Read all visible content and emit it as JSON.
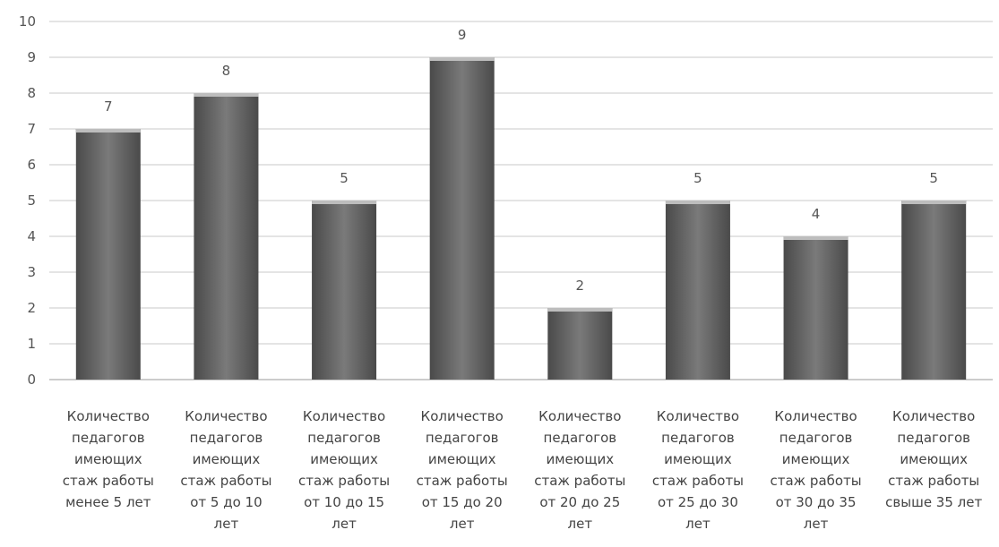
{
  "chart_data": {
    "type": "bar",
    "categories": [
      [
        "Количество",
        "педагогов",
        "имеющих",
        "стаж работы",
        "менее 5 лет"
      ],
      [
        "Количество",
        "педагогов",
        "имеющих",
        "стаж работы",
        "от 5 до 10",
        "лет"
      ],
      [
        "Количество",
        "педагогов",
        "имеющих",
        "стаж работы",
        "от 10 до 15",
        "лет"
      ],
      [
        "Количество",
        "педагогов",
        "имеющих",
        "стаж работы",
        "от 15 до 20",
        "лет"
      ],
      [
        "Количество",
        "педагогов",
        "имеющих",
        "стаж работы",
        "от 20 до 25",
        "лет"
      ],
      [
        "Количество",
        "педагогов",
        "имеющих",
        "стаж работы",
        "от 25 до 30",
        "лет"
      ],
      [
        "Количество",
        "педагогов",
        "имеющих",
        "стаж работы",
        "от 30 до 35",
        "лет"
      ],
      [
        "Количество",
        "педагогов",
        "имеющих",
        "стаж работы",
        "свыше 35 лет"
      ]
    ],
    "values": [
      7,
      8,
      5,
      9,
      2,
      5,
      4,
      5
    ],
    "data_labels": [
      "7",
      "8",
      "5",
      "9",
      "2",
      "5",
      "4",
      "5"
    ],
    "y_ticks": [
      "0",
      "1",
      "2",
      "3",
      "4",
      "5",
      "6",
      "7",
      "8",
      "9",
      "10"
    ],
    "ylim": [
      0,
      10
    ],
    "grid": true,
    "legend": "none",
    "colors": {
      "bar_dark": "#4a4a4a",
      "bar_mid": "#6e6e6e",
      "bar_light": "#8a8a8a",
      "bar_top": "#bdbdbd",
      "grid": "#c8c8c8"
    }
  }
}
